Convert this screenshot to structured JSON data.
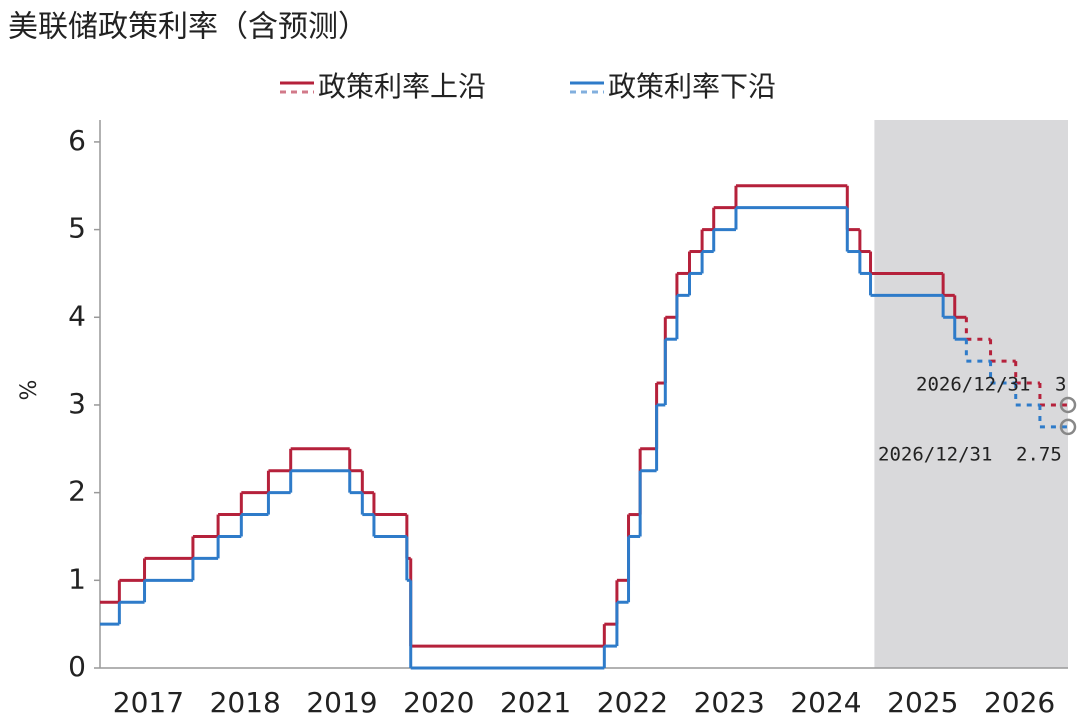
{
  "chart_data": {
    "type": "step-line",
    "title": "美联储政策利率（含预测）",
    "y_label": "%",
    "x": [
      2017.0,
      2017.2,
      2017.46,
      2017.96,
      2018.22,
      2018.46,
      2018.74,
      2018.97,
      2019.58,
      2019.71,
      2019.83,
      2020.17,
      2020.21,
      2022.21,
      2022.34,
      2022.46,
      2022.58,
      2022.75,
      2022.84,
      2022.96,
      2023.09,
      2023.22,
      2023.34,
      2023.57,
      2024.72,
      2024.85,
      2024.96,
      2025.71,
      2025.83,
      2025.95,
      2026.2,
      2026.46,
      2026.71
    ],
    "styles": [
      "solid",
      "solid",
      "solid",
      "solid",
      "solid",
      "solid",
      "solid",
      "solid",
      "solid",
      "solid",
      "solid",
      "solid",
      "solid",
      "solid",
      "solid",
      "solid",
      "solid",
      "solid",
      "solid",
      "solid",
      "solid",
      "solid",
      "solid",
      "solid",
      "solid",
      "solid",
      "solid",
      "solid",
      "solid",
      "dashed",
      "dashed",
      "dashed",
      "dashed"
    ],
    "series": [
      {
        "name": "政策利率上沿",
        "color": "#b5213b",
        "values": [
          0.75,
          1.0,
          1.25,
          1.5,
          1.75,
          2.0,
          2.25,
          2.5,
          2.25,
          2.0,
          1.75,
          1.25,
          0.25,
          0.5,
          1.0,
          1.75,
          2.5,
          3.25,
          4.0,
          4.5,
          4.75,
          5.0,
          5.25,
          5.5,
          5.0,
          4.75,
          4.5,
          4.25,
          4.0,
          3.75,
          3.5,
          3.25,
          3.0
        ]
      },
      {
        "name": "政策利率下沿",
        "color": "#2e7bc9",
        "values": [
          0.5,
          0.75,
          1.0,
          1.25,
          1.5,
          1.75,
          2.0,
          2.25,
          2.0,
          1.75,
          1.5,
          1.0,
          0.0,
          0.25,
          0.75,
          1.5,
          2.25,
          3.0,
          3.75,
          4.25,
          4.5,
          4.75,
          5.0,
          5.25,
          4.75,
          4.5,
          4.25,
          4.0,
          3.75,
          3.5,
          3.25,
          3.0,
          2.75
        ]
      }
    ],
    "annotations": [
      {
        "date": "2026/12/31",
        "value": 3
      },
      {
        "date": "2026/12/31",
        "value": 2.75
      }
    ],
    "shade": [
      2025,
      2027
    ],
    "xlim": [
      2017,
      2027
    ],
    "ylim": [
      0,
      6.25
    ],
    "xticks": [
      {
        "value": 2017.5,
        "label": "2017"
      },
      {
        "value": 2018.5,
        "label": "2018"
      },
      {
        "value": 2019.5,
        "label": "2019"
      },
      {
        "value": 2020.5,
        "label": "2020"
      },
      {
        "value": 2021.5,
        "label": "2021"
      },
      {
        "value": 2022.5,
        "label": "2022"
      },
      {
        "value": 2023.5,
        "label": "2023"
      },
      {
        "value": 2024.5,
        "label": "2024"
      },
      {
        "value": 2025.5,
        "label": "2025"
      },
      {
        "value": 2026.5,
        "label": "2026"
      }
    ],
    "yticks": [
      0,
      1,
      2,
      3,
      4,
      5,
      6
    ]
  }
}
